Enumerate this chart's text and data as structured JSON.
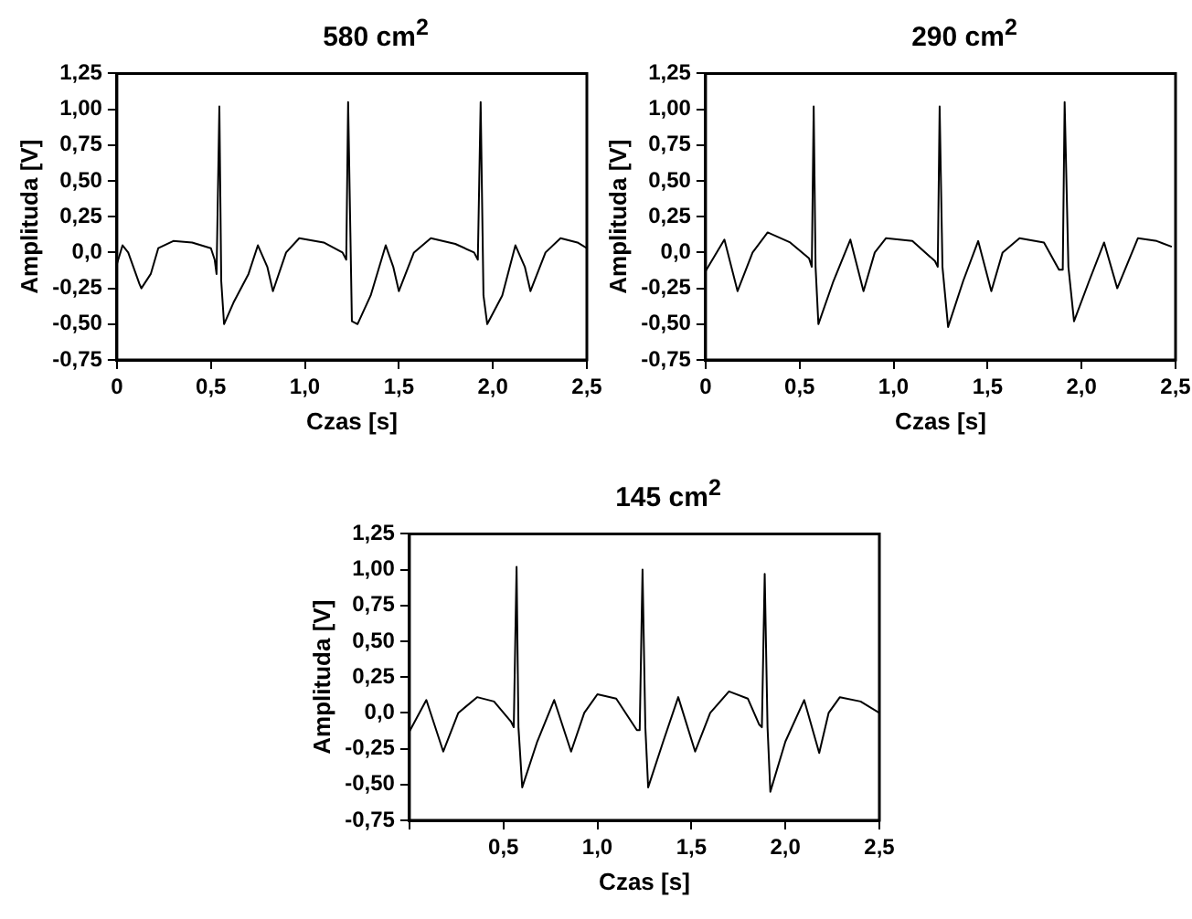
{
  "chart_data": [
    {
      "type": "line",
      "title": "580 cm$^{2}$",
      "xlabel": "Czas [s]",
      "ylabel": "Amplituda [V]",
      "xlim": [
        0,
        2.5
      ],
      "ylim": [
        -0.75,
        1.25
      ],
      "xticks": [
        0,
        {
          "value": 0.5,
          "label": "0,5"
        },
        {
          "value": 1,
          "label": "1,0"
        },
        {
          "value": 1.5,
          "label": "1,5"
        },
        {
          "value": 2,
          "label": "2,0"
        },
        {
          "value": 2.5,
          "label": "2,5"
        }
      ],
      "yticks": [
        {
          "value": -0.75,
          "label": "-0,75"
        },
        {
          "value": -0.5,
          "label": "-0,50"
        },
        {
          "value": -0.25,
          "label": "-0,25"
        },
        {
          "value": 0,
          "label": "0,0"
        },
        {
          "value": 0.25,
          "label": "0,25"
        },
        {
          "value": 0.5,
          "label": "0,50"
        },
        {
          "value": 0.75,
          "label": "0,75"
        },
        {
          "value": 1,
          "label": "1,00"
        },
        {
          "value": 1.25,
          "label": "1,25"
        }
      ],
      "grid": false,
      "legend": false,
      "marker": "none",
      "line_style": "solid",
      "series": [
        {
          "color": "#000000",
          "x": [
            0,
            0.03,
            0.06,
            0.12,
            0.13,
            0.18,
            0.22,
            0.3,
            0.4,
            0.5,
            0.52,
            0.53,
            0.545,
            0.555,
            0.57,
            0.62,
            0.7,
            0.75,
            0.8,
            0.83,
            0.9,
            0.97,
            1.1,
            1.2,
            1.22,
            1.23,
            1.25,
            1.28,
            1.35,
            1.43,
            1.47,
            1.5,
            1.58,
            1.67,
            1.8,
            1.9,
            1.92,
            1.935,
            1.95,
            1.97,
            2.05,
            2.12,
            2.17,
            2.2,
            2.28,
            2.36,
            2.45,
            2.5
          ],
          "values": [
            -0.08,
            0.05,
            0.0,
            -0.22,
            -0.25,
            -0.15,
            0.03,
            0.08,
            0.07,
            0.03,
            -0.05,
            -0.15,
            1.02,
            -0.2,
            -0.5,
            -0.35,
            -0.15,
            0.05,
            -0.1,
            -0.27,
            0.0,
            0.1,
            0.07,
            0.0,
            -0.05,
            1.05,
            -0.48,
            -0.5,
            -0.3,
            0.05,
            -0.1,
            -0.27,
            0.0,
            0.1,
            0.06,
            0.0,
            -0.05,
            1.05,
            -0.3,
            -0.5,
            -0.3,
            0.05,
            -0.1,
            -0.27,
            0.0,
            0.1,
            0.07,
            0.03
          ]
        }
      ]
    },
    {
      "type": "line",
      "title": "290 cm$^{2}$",
      "xlabel": "Czas [s]",
      "ylabel": "Amplituda [V]",
      "xlim": [
        0,
        2.5
      ],
      "ylim": [
        -0.75,
        1.25
      ],
      "xticks": [
        0,
        {
          "value": 0.5,
          "label": "0,5"
        },
        {
          "value": 1,
          "label": "1,0"
        },
        {
          "value": 1.5,
          "label": "1,5"
        },
        {
          "value": 2,
          "label": "2,0"
        },
        {
          "value": 2.5,
          "label": "2,5"
        }
      ],
      "yticks": [
        {
          "value": -0.75,
          "label": "-0,75"
        },
        {
          "value": -0.5,
          "label": "-0,50"
        },
        {
          "value": -0.25,
          "label": "-0,25"
        },
        {
          "value": 0,
          "label": "0,0"
        },
        {
          "value": 0.25,
          "label": "0,25"
        },
        {
          "value": 0.5,
          "label": "0,50"
        },
        {
          "value": 0.75,
          "label": "0,75"
        },
        {
          "value": 1,
          "label": "1,00"
        },
        {
          "value": 1.25,
          "label": "1,25"
        }
      ],
      "grid": false,
      "legend": false,
      "marker": "none",
      "line_style": "solid",
      "series": [
        {
          "color": "#000000",
          "x": [
            0,
            0.1,
            0.17,
            0.25,
            0.33,
            0.45,
            0.55,
            0.565,
            0.575,
            0.585,
            0.6,
            0.68,
            0.77,
            0.84,
            0.9,
            0.96,
            1.1,
            1.22,
            1.235,
            1.245,
            1.26,
            1.29,
            1.37,
            1.45,
            1.52,
            1.58,
            1.67,
            1.8,
            1.88,
            1.9,
            1.91,
            1.93,
            1.96,
            2.04,
            2.12,
            2.19,
            2.3,
            2.4,
            2.48
          ],
          "values": [
            -0.13,
            0.09,
            -0.27,
            0.0,
            0.14,
            0.07,
            -0.04,
            -0.1,
            1.02,
            -0.1,
            -0.5,
            -0.2,
            0.09,
            -0.27,
            0.0,
            0.1,
            0.08,
            -0.06,
            -0.1,
            1.02,
            -0.1,
            -0.52,
            -0.2,
            0.08,
            -0.27,
            0.0,
            0.1,
            0.07,
            -0.12,
            -0.12,
            1.05,
            -0.1,
            -0.48,
            -0.2,
            0.07,
            -0.25,
            0.1,
            0.08,
            0.04
          ]
        }
      ]
    },
    {
      "type": "line",
      "title": "145 cm$^{2}$",
      "xlabel": "Czas [s]",
      "ylabel": "Amplituda [V]",
      "xlim": [
        0,
        2.5
      ],
      "ylim": [
        -0.75,
        1.25
      ],
      "xticks": [
        {
          "value": 0,
          "label": null
        },
        {
          "value": 0.5,
          "label": "0,5"
        },
        {
          "value": 1,
          "label": "1,0"
        },
        {
          "value": 1.5,
          "label": "1,5"
        },
        {
          "value": 2,
          "label": "2,0"
        },
        {
          "value": 2.5,
          "label": "2,5"
        }
      ],
      "yticks": [
        {
          "value": -0.75,
          "label": "-0,75"
        },
        {
          "value": -0.5,
          "label": "-0,50"
        },
        {
          "value": -0.25,
          "label": "-0,25"
        },
        {
          "value": 0,
          "label": "0,0"
        },
        {
          "value": 0.25,
          "label": "0,25"
        },
        {
          "value": 0.5,
          "label": "0,50"
        },
        {
          "value": 0.75,
          "label": "0,75"
        },
        {
          "value": 1,
          "label": "1,00"
        },
        {
          "value": 1.25,
          "label": "1,25"
        }
      ],
      "grid": false,
      "legend": false,
      "marker": "none",
      "line_style": "solid",
      "series": [
        {
          "color": "#000000",
          "x": [
            0,
            0.09,
            0.18,
            0.26,
            0.36,
            0.45,
            0.54,
            0.555,
            0.57,
            0.58,
            0.6,
            0.68,
            0.77,
            0.86,
            0.93,
            1.0,
            1.1,
            1.21,
            1.225,
            1.24,
            1.255,
            1.27,
            1.35,
            1.43,
            1.52,
            1.6,
            1.7,
            1.8,
            1.86,
            1.875,
            1.89,
            1.905,
            1.92,
            2.0,
            2.1,
            2.18,
            2.23,
            2.29,
            2.4,
            2.5
          ],
          "values": [
            -0.13,
            0.09,
            -0.27,
            0.0,
            0.11,
            0.08,
            -0.06,
            -0.1,
            1.02,
            -0.1,
            -0.52,
            -0.2,
            0.09,
            -0.27,
            0.0,
            0.13,
            0.1,
            -0.12,
            -0.12,
            1.0,
            -0.1,
            -0.52,
            -0.2,
            0.11,
            -0.27,
            0.0,
            0.15,
            0.1,
            -0.08,
            -0.1,
            0.97,
            -0.1,
            -0.55,
            -0.2,
            0.09,
            -0.28,
            0.0,
            0.11,
            0.08,
            0.0
          ]
        }
      ]
    }
  ]
}
